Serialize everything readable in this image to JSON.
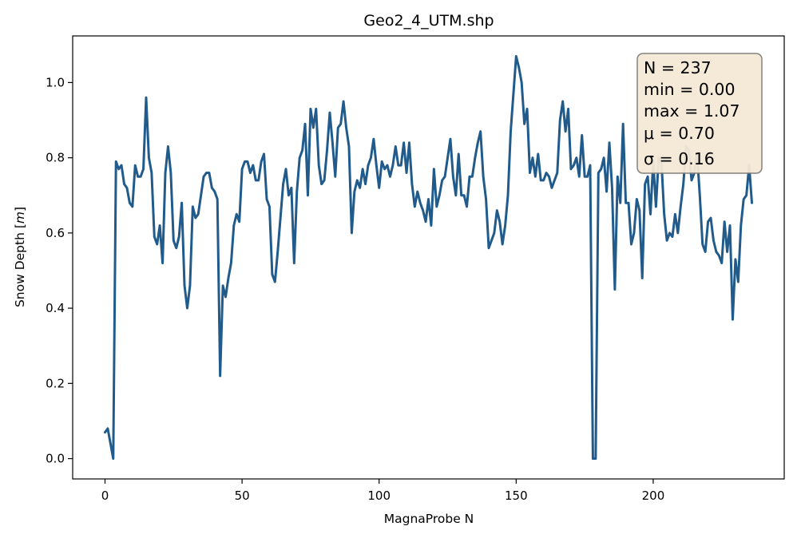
{
  "chart_data": {
    "type": "line",
    "title": "Geo2_4_UTM.shp",
    "xlabel": "MagnaProbe N",
    "ylabel": "Snow Depth [m]",
    "xlim": [
      -11.8,
      247.8
    ],
    "ylim": [
      -0.054,
      1.124
    ],
    "xticks": [
      0,
      50,
      100,
      150,
      200
    ],
    "xtick_labels": [
      "0",
      "50",
      "100",
      "150",
      "200"
    ],
    "yticks": [
      0.0,
      0.2,
      0.4,
      0.6,
      0.8,
      1.0
    ],
    "ytick_labels": [
      "0.0",
      "0.2",
      "0.4",
      "0.6",
      "0.8",
      "1.0"
    ],
    "grid": false,
    "line_color": "#215b8b",
    "stats_box": {
      "lines": [
        "N = 237",
        "min = 0.00",
        "max = 1.07",
        "μ = 0.70",
        "σ = 0.16"
      ],
      "facecolor": "#f5e9d6",
      "edgecolor": "#7d7b78",
      "placement": "top-right"
    },
    "series": [
      {
        "values": [
          0.07,
          0.08,
          0.04,
          0.0,
          0.79,
          0.77,
          0.78,
          0.73,
          0.72,
          0.68,
          0.67,
          0.78,
          0.75,
          0.75,
          0.77,
          0.96,
          0.8,
          0.76,
          0.59,
          0.57,
          0.62,
          0.52,
          0.76,
          0.83,
          0.76,
          0.58,
          0.56,
          0.59,
          0.68,
          0.46,
          0.4,
          0.46,
          0.67,
          0.64,
          0.65,
          0.7,
          0.75,
          0.76,
          0.76,
          0.72,
          0.71,
          0.69,
          0.22,
          0.46,
          0.43,
          0.48,
          0.52,
          0.62,
          0.65,
          0.63,
          0.77,
          0.79,
          0.79,
          0.76,
          0.78,
          0.74,
          0.74,
          0.79,
          0.81,
          0.69,
          0.67,
          0.49,
          0.47,
          0.55,
          0.64,
          0.73,
          0.77,
          0.7,
          0.72,
          0.52,
          0.71,
          0.8,
          0.82,
          0.89,
          0.7,
          0.93,
          0.88,
          0.93,
          0.78,
          0.73,
          0.74,
          0.82,
          0.92,
          0.84,
          0.75,
          0.88,
          0.89,
          0.95,
          0.88,
          0.83,
          0.6,
          0.71,
          0.74,
          0.72,
          0.77,
          0.73,
          0.78,
          0.8,
          0.85,
          0.78,
          0.72,
          0.79,
          0.77,
          0.78,
          0.75,
          0.78,
          0.83,
          0.78,
          0.78,
          0.84,
          0.76,
          0.84,
          0.73,
          0.67,
          0.71,
          0.68,
          0.66,
          0.63,
          0.69,
          0.62,
          0.77,
          0.67,
          0.7,
          0.74,
          0.75,
          0.8,
          0.85,
          0.75,
          0.7,
          0.81,
          0.7,
          0.7,
          0.67,
          0.75,
          0.75,
          0.8,
          0.84,
          0.87,
          0.75,
          0.69,
          0.56,
          0.58,
          0.6,
          0.66,
          0.63,
          0.57,
          0.62,
          0.7,
          0.87,
          0.97,
          1.07,
          1.04,
          1.0,
          0.89,
          0.93,
          0.76,
          0.8,
          0.75,
          0.81,
          0.74,
          0.74,
          0.76,
          0.75,
          0.72,
          0.74,
          0.76,
          0.9,
          0.95,
          0.87,
          0.93,
          0.77,
          0.78,
          0.8,
          0.75,
          0.86,
          0.75,
          0.75,
          0.78,
          0.0,
          0.0,
          0.76,
          0.77,
          0.8,
          0.71,
          0.84,
          0.72,
          0.45,
          0.75,
          0.68,
          0.89,
          0.68,
          0.68,
          0.57,
          0.6,
          0.69,
          0.66,
          0.48,
          0.73,
          0.75,
          0.65,
          0.79,
          0.67,
          0.8,
          0.79,
          0.65,
          0.58,
          0.6,
          0.59,
          0.65,
          0.6,
          0.67,
          0.73,
          0.83,
          0.82,
          0.74,
          0.76,
          0.81,
          0.7,
          0.57,
          0.55,
          0.63,
          0.64,
          0.58,
          0.55,
          0.54,
          0.52,
          0.63,
          0.55,
          0.62,
          0.37,
          0.53,
          0.47,
          0.62,
          0.69,
          0.7,
          0.78,
          0.68
        ]
      }
    ]
  }
}
